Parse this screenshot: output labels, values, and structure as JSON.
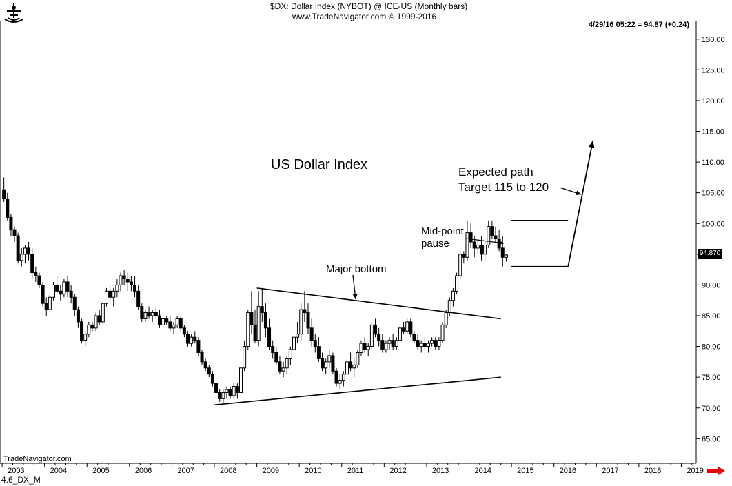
{
  "header": {
    "title_line": "$DX:  Dollar Index (NYBOT) @ ICE-US  (Monthly bars)",
    "copyright": "www.TradeNavigator.com © 1999-2016",
    "quote": "4/29/16 05:22 = 94.87 (+0.24)",
    "brand": "TradeNavigator.com",
    "chart_id": "4.6_DX_M",
    "last_price_tag": "94.870"
  },
  "annotations": {
    "main_title": "US Dollar Index",
    "major_bottom": "Major bottom",
    "midpoint_line1": "Mid-point",
    "midpoint_line2": "pause",
    "expected_line1": "Expected path",
    "expected_line2": "Target 115 to 120"
  },
  "colors": {
    "bars": "#000000",
    "background": "#ffffff",
    "nav_arrow": "#e8000b"
  },
  "icons": {
    "logo": "ship-wheel-logo-icon",
    "nav": "right-arrow-icon"
  },
  "chart_data": {
    "type": "candlestick",
    "title": "US Dollar Index",
    "xlabel": "",
    "ylabel": "",
    "ylim": [
      61,
      133
    ],
    "xlim_years": [
      2002.95,
      2019.35
    ],
    "x_ticks": [
      "2003",
      "2004",
      "2005",
      "2006",
      "2007",
      "2008",
      "2009",
      "2010",
      "2011",
      "2012",
      "2013",
      "2014",
      "2015",
      "2016",
      "2017",
      "2018",
      "2019"
    ],
    "y_ticks": [
      "65.00",
      "70.00",
      "75.00",
      "80.00",
      "85.00",
      "90.00",
      "95.00",
      "100.00",
      "105.00",
      "110.00",
      "115.00",
      "120.00",
      "125.00",
      "130.00"
    ],
    "grid": false,
    "last_price": 94.87,
    "start_date": "2003-01",
    "ohlc": [
      [
        105.5,
        107.5,
        103.5,
        104
      ],
      [
        104,
        105,
        100.5,
        101
      ],
      [
        101,
        101.5,
        98,
        99
      ],
      [
        99,
        99.5,
        97,
        98
      ],
      [
        98,
        98.5,
        93.5,
        94
      ],
      [
        94,
        96,
        93,
        95
      ],
      [
        95,
        96.5,
        93.5,
        96
      ],
      [
        96,
        97,
        94,
        95
      ],
      [
        95,
        96,
        91,
        92
      ],
      [
        92,
        93,
        90.5,
        91.5
      ],
      [
        91.5,
        92,
        89.5,
        90
      ],
      [
        90,
        90.5,
        86.5,
        87
      ],
      [
        87,
        88,
        85,
        86
      ],
      [
        86,
        88.5,
        85.5,
        88
      ],
      [
        88,
        90.5,
        87.5,
        90
      ],
      [
        90,
        91.5,
        88.5,
        89
      ],
      [
        89,
        90,
        87.5,
        88.5
      ],
      [
        88.5,
        91,
        88,
        90.5
      ],
      [
        90.5,
        91.5,
        88,
        89
      ],
      [
        89,
        90,
        87,
        88
      ],
      [
        88,
        88.5,
        85,
        86
      ],
      [
        86,
        86.5,
        83,
        84
      ],
      [
        84,
        84.5,
        80.5,
        81
      ],
      [
        81,
        82.5,
        80,
        82
      ],
      [
        82,
        84,
        81.5,
        83.5
      ],
      [
        83.5,
        84,
        82.5,
        83
      ],
      [
        83,
        85.5,
        82.5,
        85
      ],
      [
        85,
        86,
        83.5,
        84
      ],
      [
        84,
        87.5,
        83.5,
        87
      ],
      [
        87,
        89.5,
        86.5,
        89
      ],
      [
        89,
        90,
        87,
        88
      ],
      [
        88,
        89.5,
        86.5,
        89
      ],
      [
        89,
        91,
        88,
        90
      ],
      [
        90,
        92,
        89,
        91.5
      ],
      [
        91.5,
        92.5,
        90,
        91
      ],
      [
        91,
        92,
        89,
        90.5
      ],
      [
        90.5,
        91.5,
        89,
        90
      ],
      [
        90,
        91.5,
        88,
        89
      ],
      [
        89,
        90,
        86,
        86.5
      ],
      [
        86.5,
        87,
        84,
        84.5
      ],
      [
        84.5,
        86,
        84,
        85.5
      ],
      [
        85.5,
        86.5,
        84.5,
        85
      ],
      [
        85,
        86,
        84,
        85.5
      ],
      [
        85.5,
        86.5,
        84.5,
        85
      ],
      [
        85,
        86,
        83,
        83.5
      ],
      [
        83.5,
        85,
        83,
        84.5
      ],
      [
        84.5,
        85,
        83.5,
        84
      ],
      [
        84,
        85,
        82.5,
        83
      ],
      [
        83,
        84,
        82,
        83.5
      ],
      [
        83.5,
        85,
        83,
        84.5
      ],
      [
        84.5,
        85,
        82.5,
        83
      ],
      [
        83,
        83.5,
        81.5,
        82
      ],
      [
        82,
        82.5,
        80,
        80.5
      ],
      [
        80.5,
        82,
        80,
        81.5
      ],
      [
        81.5,
        82.5,
        80.5,
        81
      ],
      [
        81,
        81.5,
        78.5,
        79
      ],
      [
        79,
        79.5,
        77,
        77.5
      ],
      [
        77.5,
        78,
        76,
        76.5
      ],
      [
        76.5,
        77,
        75,
        75.5
      ],
      [
        75.5,
        76,
        73.5,
        74
      ],
      [
        74,
        74.5,
        72,
        72.5
      ],
      [
        72.5,
        73,
        71,
        71.5
      ],
      [
        71.5,
        73,
        70.8,
        72.5
      ],
      [
        72.5,
        73.5,
        71.5,
        73
      ],
      [
        73,
        73.5,
        71.5,
        72
      ],
      [
        72,
        74,
        71.5,
        73.5
      ],
      [
        73.5,
        74,
        71.5,
        72.5
      ],
      [
        72.5,
        77,
        72,
        76.5
      ],
      [
        76.5,
        81,
        76,
        80
      ],
      [
        80,
        86,
        79.5,
        85.5
      ],
      [
        85.5,
        89,
        82,
        83.5
      ],
      [
        83.5,
        86,
        80.5,
        81
      ],
      [
        81,
        89,
        80,
        86.5
      ],
      [
        86.5,
        89.5,
        84,
        85.5
      ],
      [
        85.5,
        87,
        81.5,
        83
      ],
      [
        83,
        84.5,
        79.5,
        80
      ],
      [
        80,
        81,
        78,
        79
      ],
      [
        79,
        80,
        77,
        77.5
      ],
      [
        77.5,
        78.5,
        75.5,
        76
      ],
      [
        76,
        77.5,
        75,
        76.5
      ],
      [
        76.5,
        78.5,
        75.5,
        78
      ],
      [
        78,
        80,
        77,
        79.5
      ],
      [
        79.5,
        82,
        78.5,
        81.5
      ],
      [
        81.5,
        84,
        80.5,
        82
      ],
      [
        82,
        87,
        81,
        86
      ],
      [
        86,
        89,
        84,
        85.5
      ],
      [
        85.5,
        87,
        82,
        83
      ],
      [
        83,
        84.5,
        80,
        81
      ],
      [
        81,
        82,
        79,
        80
      ],
      [
        80,
        81.5,
        77.5,
        78
      ],
      [
        78,
        79,
        76,
        76.5
      ],
      [
        76.5,
        78,
        75.5,
        77.5
      ],
      [
        77.5,
        79.5,
        76.5,
        78.5
      ],
      [
        78.5,
        79,
        75.5,
        76
      ],
      [
        76,
        76.5,
        73.5,
        74
      ],
      [
        74,
        75.5,
        73,
        74.5
      ],
      [
        74.5,
        76,
        73.5,
        75.5
      ],
      [
        75.5,
        78,
        74.5,
        77.5
      ],
      [
        77.5,
        79,
        76,
        76.5
      ],
      [
        76.5,
        78,
        75,
        77
      ],
      [
        77,
        79.5,
        76.5,
        79
      ],
      [
        79,
        81,
        78.5,
        80.5
      ],
      [
        80.5,
        81.5,
        79,
        79.5
      ],
      [
        79.5,
        80.5,
        78.5,
        80
      ],
      [
        80,
        84,
        79.5,
        83.5
      ],
      [
        83.5,
        84.5,
        81.5,
        82
      ],
      [
        82,
        83,
        80,
        81
      ],
      [
        81,
        82,
        79,
        79.5
      ],
      [
        79.5,
        81,
        79,
        80.5
      ],
      [
        80.5,
        81.5,
        79.5,
        81
      ],
      [
        81,
        82,
        79.5,
        80
      ],
      [
        80,
        81.5,
        79.5,
        81
      ],
      [
        81,
        83.5,
        80.5,
        83
      ],
      [
        83,
        84,
        82,
        82.5
      ],
      [
        82.5,
        84.5,
        82,
        84
      ],
      [
        84,
        84.5,
        81.5,
        82
      ],
      [
        82,
        82.5,
        80.5,
        81
      ],
      [
        81,
        82,
        79.5,
        80
      ],
      [
        80,
        81,
        79,
        80.5
      ],
      [
        80.5,
        81.5,
        79.5,
        80
      ],
      [
        80,
        81,
        79,
        80.5
      ],
      [
        80.5,
        81.5,
        80,
        81
      ],
      [
        81,
        81.5,
        79.5,
        80
      ],
      [
        80,
        81.5,
        79.5,
        81
      ],
      [
        81,
        84,
        80.5,
        83.5
      ],
      [
        83.5,
        86,
        83,
        85.5
      ],
      [
        85.5,
        88,
        85,
        87.5
      ],
      [
        87.5,
        89.5,
        86.5,
        89
      ],
      [
        89,
        92,
        88.5,
        91.5
      ],
      [
        91.5,
        95.5,
        91,
        95
      ],
      [
        95,
        95.5,
        93.5,
        94.5
      ],
      [
        94.5,
        100.5,
        94,
        98.5
      ],
      [
        98.5,
        100,
        96,
        97
      ],
      [
        97,
        98,
        94.5,
        96
      ],
      [
        96,
        97.5,
        95,
        96.5
      ],
      [
        96.5,
        98,
        94,
        95
      ],
      [
        95,
        97,
        94,
        96.5
      ],
      [
        96.5,
        100.5,
        96,
        99.5
      ],
      [
        99.5,
        100.5,
        97.5,
        98
      ],
      [
        98,
        99.5,
        97,
        97.5
      ],
      [
        97.5,
        99,
        95.5,
        96
      ],
      [
        96,
        98,
        93,
        94.5
      ],
      [
        94.5,
        95,
        93.8,
        94.87
      ]
    ],
    "trendlines": [
      {
        "label": "Major bottom",
        "from": [
          "2009-01",
          89.5
        ],
        "to": [
          "2014-10",
          84.5
        ]
      },
      {
        "from": [
          "2008-01",
          70.5
        ],
        "to": [
          "2014-10",
          75
        ]
      }
    ],
    "consolidation_box": {
      "label": "Mid-point pause",
      "from": "2015-01",
      "to": "2016-05",
      "top": 100.5,
      "bottom": 93
    },
    "expected_path": {
      "label": "Expected path Target 115 to 120",
      "from": [
        "2016-05",
        93
      ],
      "to": [
        "2016-12",
        113.5
      ]
    }
  }
}
